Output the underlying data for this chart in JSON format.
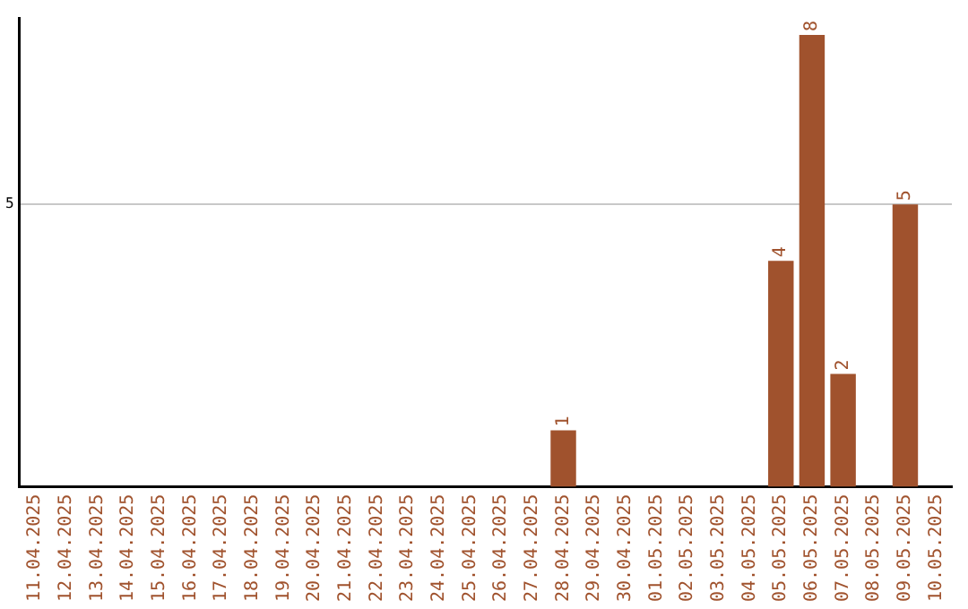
{
  "chart_data": {
    "type": "bar",
    "categories": [
      "11.04.2025",
      "12.04.2025",
      "13.04.2025",
      "14.04.2025",
      "15.04.2025",
      "16.04.2025",
      "17.04.2025",
      "18.04.2025",
      "19.04.2025",
      "20.04.2025",
      "21.04.2025",
      "22.04.2025",
      "23.04.2025",
      "24.04.2025",
      "25.04.2025",
      "26.04.2025",
      "27.04.2025",
      "28.04.2025",
      "29.04.2025",
      "30.04.2025",
      "01.05.2025",
      "02.05.2025",
      "03.05.2025",
      "04.05.2025",
      "05.05.2025",
      "06.05.2025",
      "07.05.2025",
      "08.05.2025",
      "09.05.2025",
      "10.05.2025"
    ],
    "values": [
      null,
      null,
      null,
      null,
      null,
      null,
      null,
      null,
      null,
      null,
      null,
      null,
      null,
      null,
      null,
      null,
      null,
      1,
      null,
      null,
      null,
      null,
      null,
      null,
      4,
      8,
      2,
      null,
      5,
      null
    ],
    "data_labels": true,
    "color": "#a0522d",
    "ylim": [
      0,
      8.3
    ],
    "yticks": [
      5
    ],
    "grid": "y",
    "legend": false
  }
}
